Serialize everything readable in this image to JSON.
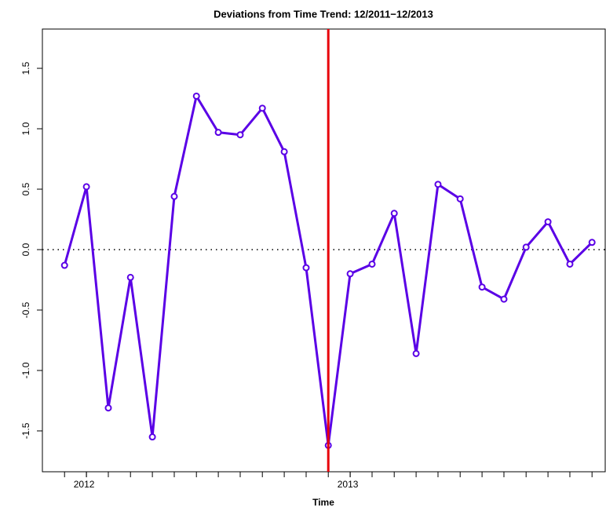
{
  "chart_data": {
    "type": "line",
    "title": "Deviations from Time Trend: 12/2011−12/2013",
    "x_label": "Time",
    "x": [
      2011.917,
      2012.0,
      2012.083,
      2012.167,
      2012.25,
      2012.333,
      2012.417,
      2012.5,
      2012.583,
      2012.667,
      2012.75,
      2012.833,
      2012.917,
      2013.0,
      2013.083,
      2013.167,
      2013.25,
      2013.333,
      2013.417,
      2013.5,
      2013.583,
      2013.667,
      2013.75,
      2013.833,
      2013.917
    ],
    "series": [
      {
        "color": "#5a00e6",
        "values": [
          -0.13,
          0.52,
          -1.31,
          -0.23,
          -1.55,
          0.44,
          1.27,
          0.97,
          0.95,
          1.17,
          0.81,
          -0.15,
          -1.62,
          -0.2,
          -0.12,
          0.3,
          -0.86,
          0.54,
          0.42,
          -0.31,
          -0.41,
          0.02,
          0.23,
          -0.12,
          0.06
        ]
      }
    ],
    "xlim": [
      2011.833,
      2013.967
    ],
    "ylim": [
      -1.838,
      1.825
    ],
    "xticks": [
      2012,
      2013
    ],
    "yticks": [
      {
        "value": -1.5,
        "label": "-1.5"
      },
      {
        "value": -1,
        "label": "-1.0"
      },
      {
        "value": -0.5,
        "label": "-0.5"
      },
      {
        "value": 0,
        "label": "0.0"
      },
      {
        "value": 0.5,
        "label": "0.5"
      },
      {
        "value": 1,
        "label": "1.0"
      },
      {
        "value": 1.5,
        "label": "1.5"
      }
    ],
    "hline": 0,
    "vline": 2012.917,
    "vline_color": "#e8000b"
  }
}
